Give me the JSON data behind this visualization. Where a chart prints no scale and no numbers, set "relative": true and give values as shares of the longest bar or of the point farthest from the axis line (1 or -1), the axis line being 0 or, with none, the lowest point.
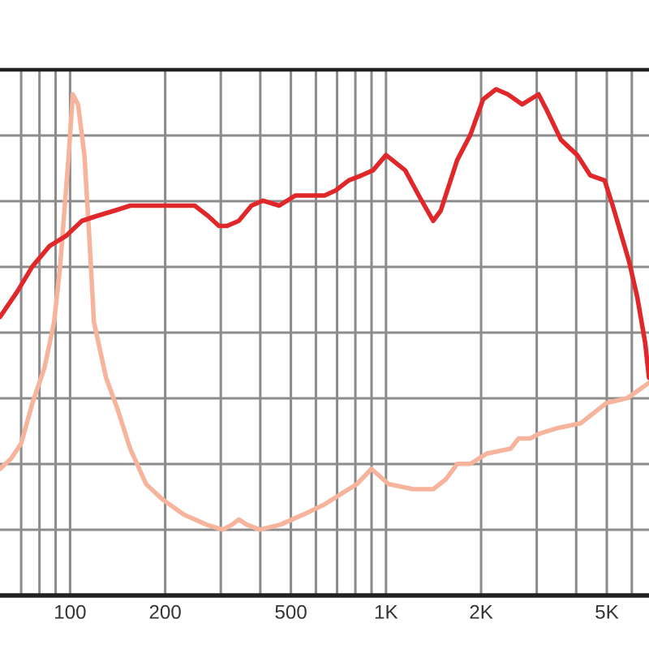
{
  "chart_data": {
    "type": "line",
    "relative": true,
    "log": "x",
    "grid": true,
    "tick_labels": "x",
    "xlim": [
      60,
      6800
    ],
    "xticks": [
      {
        "value": 70,
        "label": null
      },
      {
        "value": 80,
        "label": null
      },
      {
        "value": 90,
        "label": null
      },
      100,
      200,
      {
        "value": 300,
        "label": null
      },
      {
        "value": 400,
        "label": null
      },
      500,
      {
        "value": 600,
        "label": null
      },
      {
        "value": 700,
        "label": null
      },
      {
        "value": 800,
        "label": null
      },
      {
        "value": 900,
        "label": null
      },
      {
        "value": 1000,
        "label": "1K"
      },
      {
        "value": 2000,
        "label": "2K"
      },
      {
        "value": 3000,
        "label": null
      },
      {
        "value": 4000,
        "label": null
      },
      {
        "value": 5000,
        "label": "5K"
      },
      {
        "value": 6000,
        "label": null
      }
    ],
    "series": [
      {
        "color": "#e0282a",
        "x": [
          60,
          68,
          76,
          86,
          97,
          109,
          122,
          138,
          155,
          174,
          196,
          221,
          248,
          273,
          296,
          314,
          342,
          375,
          408,
          459,
          516,
          567,
          639,
          693,
          762,
          838,
          910,
          1000,
          1150,
          1270,
          1410,
          1490,
          1680,
          1850,
          2030,
          2230,
          2430,
          2700,
          3040,
          3220,
          3580,
          4030,
          4430,
          4920,
          5220,
          5880,
          6240,
          6610,
          6800
        ],
        "values": [
          0.55,
          0.6,
          0.65,
          0.69,
          0.71,
          0.74,
          0.75,
          0.76,
          0.77,
          0.77,
          0.77,
          0.77,
          0.77,
          0.75,
          0.73,
          0.73,
          0.74,
          0.77,
          0.78,
          0.77,
          0.79,
          0.79,
          0.79,
          0.8,
          0.82,
          0.83,
          0.84,
          0.87,
          0.84,
          0.79,
          0.74,
          0.76,
          0.86,
          0.91,
          0.98,
          1.0,
          0.99,
          0.97,
          0.99,
          0.96,
          0.9,
          0.87,
          0.83,
          0.82,
          0.77,
          0.66,
          0.59,
          0.5,
          0.43
        ]
      },
      {
        "color": "#f6b49c",
        "x": [
          60,
          65,
          70,
          76,
          83,
          89,
          93,
          99,
          102,
          106,
          111,
          115,
          119,
          130,
          141,
          155,
          174,
          196,
          229,
          270,
          304,
          326,
          342,
          362,
          398,
          464,
          548,
          639,
          719,
          809,
          899,
          1020,
          1220,
          1410,
          1550,
          1680,
          1850,
          2080,
          2480,
          2630,
          2860,
          3070,
          3460,
          4130,
          4980,
          5810,
          6800
        ],
        "values": [
          0.25,
          0.27,
          0.3,
          0.38,
          0.45,
          0.54,
          0.65,
          0.87,
          0.99,
          0.97,
          0.87,
          0.71,
          0.54,
          0.43,
          0.37,
          0.29,
          0.22,
          0.19,
          0.16,
          0.14,
          0.13,
          0.14,
          0.15,
          0.14,
          0.13,
          0.14,
          0.16,
          0.18,
          0.2,
          0.22,
          0.25,
          0.22,
          0.21,
          0.21,
          0.23,
          0.26,
          0.26,
          0.28,
          0.29,
          0.31,
          0.31,
          0.32,
          0.33,
          0.34,
          0.38,
          0.39,
          0.42
        ]
      }
    ]
  }
}
